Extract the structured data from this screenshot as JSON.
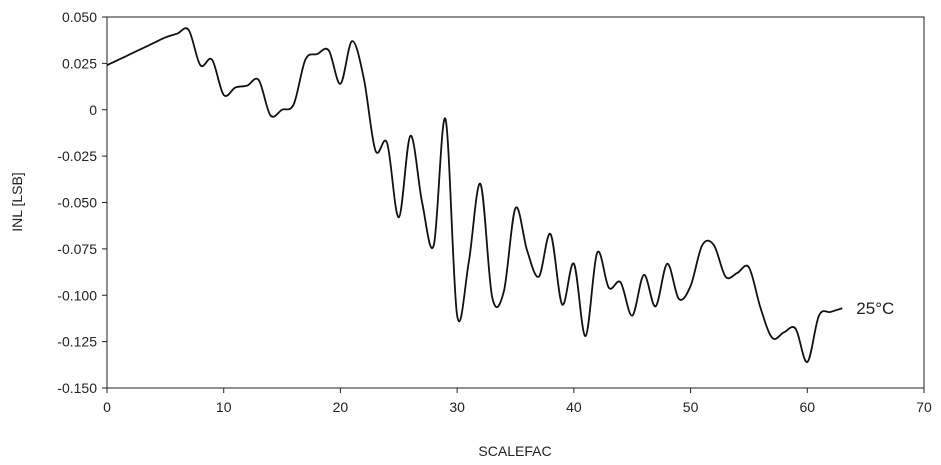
{
  "chart_data": {
    "type": "line",
    "xlabel": "SCALEFAC",
    "ylabel": "INL [LSB]",
    "xlim": [
      0,
      70
    ],
    "ylim": [
      -0.15,
      0.05
    ],
    "x_ticks": [
      "0",
      "10",
      "20",
      "30",
      "40",
      "50",
      "60",
      "70"
    ],
    "y_ticks": [
      "0.050",
      "0.025",
      "0",
      "-0.025",
      "-0.050",
      "-0.075",
      "-0.100",
      "-0.125",
      "-0.150"
    ],
    "grid": false,
    "legend": "none",
    "annotations": [
      {
        "text": "25°C",
        "x": 63,
        "y": -0.107
      }
    ],
    "colors": {
      "line": "#111111",
      "axes": "#222222"
    },
    "series": [
      {
        "x": [
          0,
          1,
          2,
          3,
          4,
          5,
          6,
          7,
          8,
          9,
          10,
          11,
          12,
          13,
          14,
          15,
          16,
          17,
          18,
          19,
          20,
          21,
          22,
          23,
          24,
          25,
          26,
          27,
          28,
          29,
          30,
          31,
          32,
          33,
          34,
          35,
          36,
          37,
          38,
          39,
          40,
          41,
          42,
          43,
          44,
          45,
          46,
          47,
          48,
          49,
          50,
          51,
          52,
          53,
          54,
          55,
          56,
          57,
          58,
          59,
          60,
          61,
          62,
          63
        ],
        "values": [
          0.024,
          0.027,
          0.03,
          0.033,
          0.036,
          0.039,
          0.041,
          0.043,
          0.024,
          0.027,
          0.008,
          0.012,
          0.013,
          0.016,
          -0.003,
          0.0,
          0.003,
          0.027,
          0.03,
          0.032,
          0.014,
          0.037,
          0.017,
          -0.022,
          -0.018,
          -0.058,
          -0.014,
          -0.05,
          -0.073,
          -0.005,
          -0.111,
          -0.082,
          -0.04,
          -0.101,
          -0.098,
          -0.053,
          -0.076,
          -0.09,
          -0.067,
          -0.105,
          -0.083,
          -0.122,
          -0.077,
          -0.096,
          -0.093,
          -0.111,
          -0.089,
          -0.106,
          -0.083,
          -0.102,
          -0.095,
          -0.073,
          -0.073,
          -0.09,
          -0.088,
          -0.085,
          -0.107,
          -0.123,
          -0.12,
          -0.118,
          -0.136,
          -0.111,
          -0.109,
          -0.107
        ]
      }
    ]
  }
}
